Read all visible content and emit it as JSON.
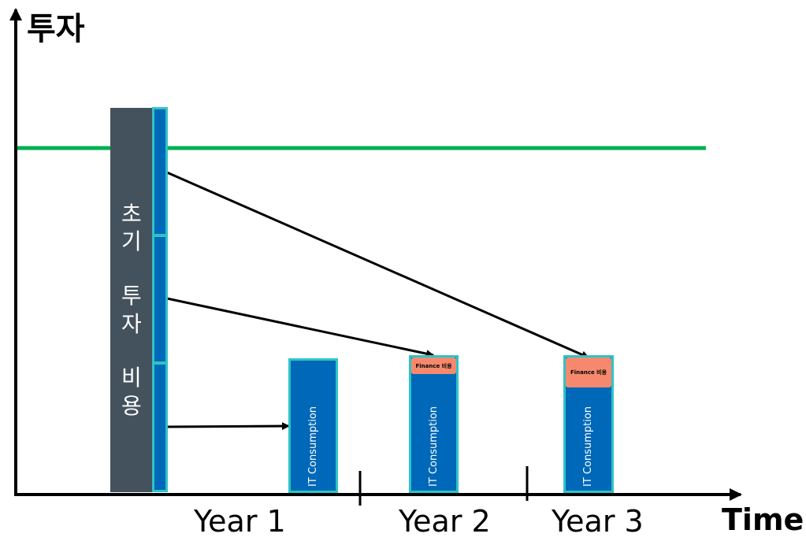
{
  "axes": {
    "y_title": "투자",
    "x_title": "Time"
  },
  "initial_investment": {
    "chars": [
      "초",
      "기",
      "투",
      "자",
      "비",
      "용"
    ]
  },
  "bars": [
    {
      "label": "IT Consumption"
    },
    {
      "label": "IT Consumption",
      "finance_label": "Finance 비용"
    },
    {
      "label": "IT Consumption",
      "finance_label": "Finance 비용"
    }
  ],
  "years": [
    "Year 1",
    "Year 2",
    "Year 3"
  ],
  "colors": {
    "investment_bar": "#44525d",
    "segment_fill": "#0068b8",
    "segment_border": "#2ec4c6",
    "threshold_line": "#00b050",
    "finance_box": "#f6896d"
  }
}
